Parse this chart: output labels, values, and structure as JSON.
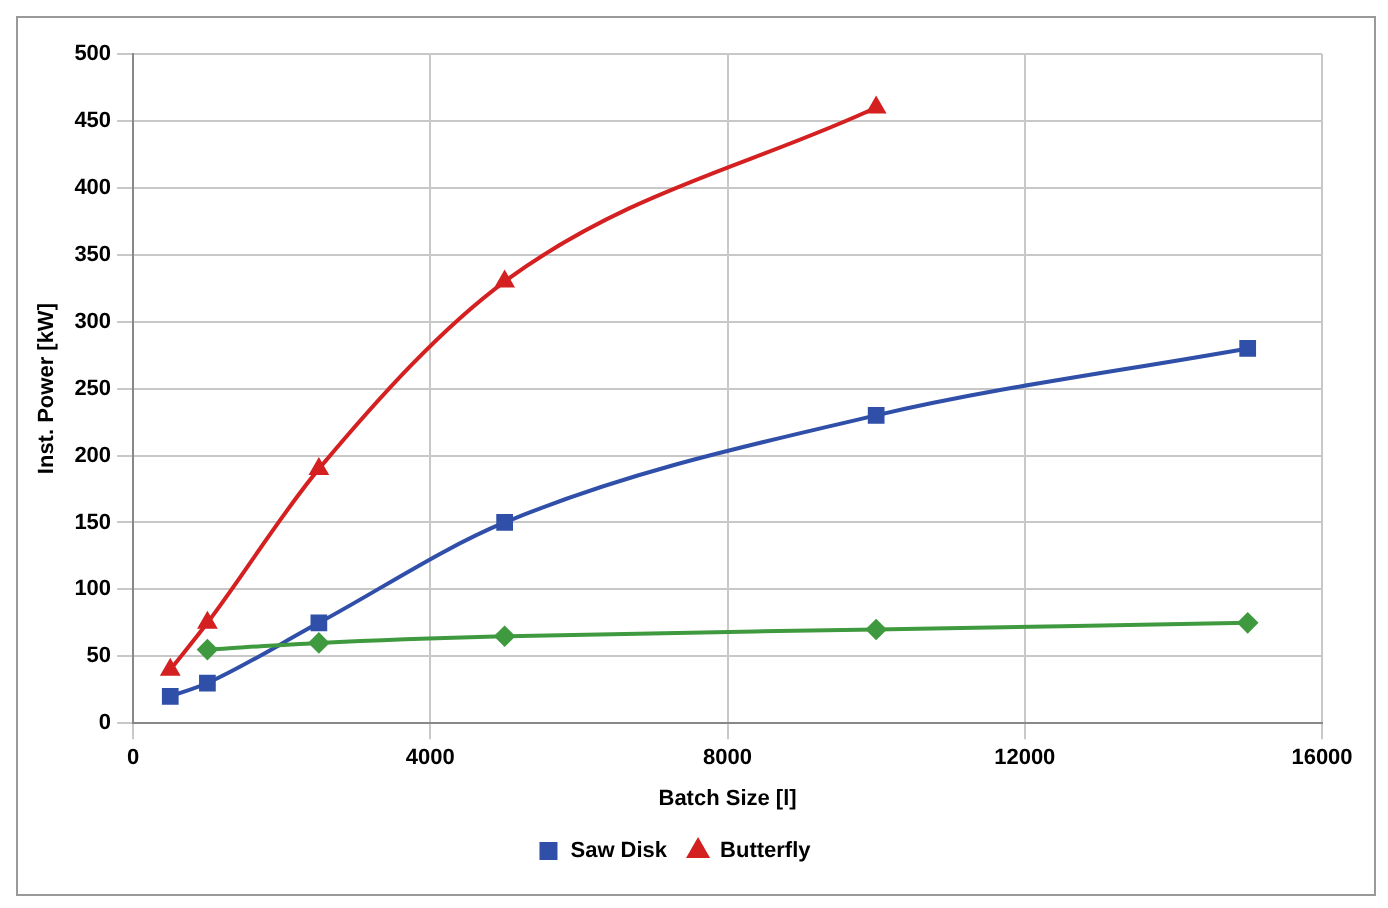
{
  "chart_data": {
    "type": "line",
    "xlabel": "Batch Size [l]",
    "ylabel": "Inst. Power [kW]",
    "xlim": [
      0,
      16000
    ],
    "xticks": [
      0,
      4000,
      8000,
      12000,
      16000
    ],
    "ylim": [
      0,
      500
    ],
    "yticks": [
      0,
      50,
      100,
      150,
      200,
      250,
      300,
      350,
      400,
      450,
      500
    ],
    "grid": true,
    "legend": "bottom",
    "series": [
      {
        "color": "#3f9a3f",
        "marker": "diamond",
        "x": [
          1000,
          2500,
          5000,
          10000,
          15000
        ],
        "values": [
          55,
          60,
          65,
          70,
          75
        ]
      },
      {
        "name": "Saw Disk",
        "color": "#2f4fa8",
        "marker": "square",
        "x": [
          500,
          1000,
          2500,
          5000,
          10000,
          15000
        ],
        "values": [
          20,
          30,
          75,
          150,
          230,
          280
        ]
      },
      {
        "name": "Butterfly",
        "color": "#d42020",
        "marker": "triangle",
        "x": [
          500,
          1000,
          2500,
          5000,
          10000
        ],
        "values": [
          40,
          75,
          190,
          330,
          460
        ]
      }
    ]
  }
}
